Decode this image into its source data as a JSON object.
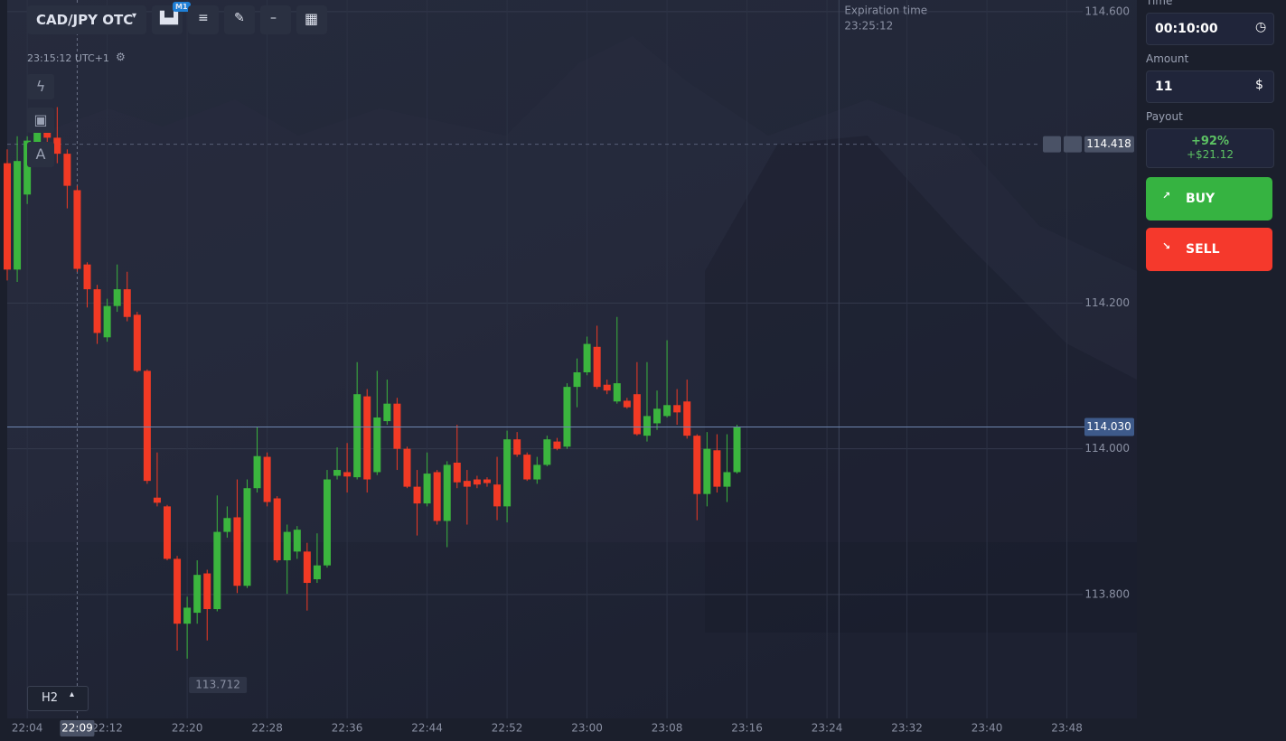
{
  "toolbar": {
    "asset": "CAD/JPY OTC",
    "timeframe_badge": "M1",
    "clock": "23:15:12 UTC+1",
    "chart_period": "H2"
  },
  "chart_data": {
    "type": "candlestick",
    "x": [
      "22:02",
      "22:03",
      "22:04",
      "22:05",
      "22:06",
      "22:07",
      "22:08",
      "22:09",
      "22:10",
      "22:11",
      "22:12",
      "22:13",
      "22:14",
      "22:15",
      "22:16",
      "22:17",
      "22:18",
      "22:19",
      "22:20",
      "22:21",
      "22:22",
      "22:23",
      "22:24",
      "22:25",
      "22:26",
      "22:27",
      "22:28",
      "22:29",
      "22:30",
      "22:31",
      "22:32",
      "22:33",
      "22:34",
      "22:35",
      "22:36",
      "22:37",
      "22:38",
      "22:39",
      "22:40",
      "22:41",
      "22:42",
      "22:43",
      "22:44",
      "22:45",
      "22:46",
      "22:47",
      "22:48",
      "22:49",
      "22:50",
      "22:51",
      "22:52",
      "22:53",
      "22:54",
      "22:55",
      "22:56",
      "22:57",
      "22:58",
      "22:59",
      "23:00",
      "23:01",
      "23:02",
      "23:03",
      "23:04",
      "23:05",
      "23:06",
      "23:07",
      "23:08",
      "23:09",
      "23:10",
      "23:11",
      "23:12",
      "23:13",
      "23:14",
      "23:15"
    ],
    "open": [
      114.392,
      114.246,
      114.349,
      114.417,
      114.436,
      114.427,
      114.405,
      114.355,
      114.253,
      114.219,
      114.153,
      114.196,
      114.219,
      114.184,
      114.107,
      113.933,
      113.921,
      113.849,
      113.76,
      113.775,
      113.829,
      113.78,
      113.886,
      113.906,
      113.812,
      113.946,
      113.989,
      113.932,
      113.847,
      113.859,
      113.859,
      113.821,
      113.84,
      113.963,
      113.968,
      113.961,
      114.072,
      113.968,
      114.038,
      114.062,
      114.0,
      113.948,
      113.925,
      113.968,
      113.901,
      113.981,
      113.956,
      113.958,
      113.958,
      113.951,
      113.921,
      114.013,
      113.992,
      113.958,
      113.978,
      114.01,
      114.003,
      114.085,
      114.105,
      114.14,
      114.088,
      114.065,
      114.066,
      114.075,
      114.018,
      114.035,
      114.045,
      114.06,
      114.065,
      114.018,
      113.938,
      113.998,
      113.948,
      113.968
    ],
    "high": [
      114.411,
      114.429,
      114.429,
      114.467,
      114.44,
      114.469,
      114.411,
      114.361,
      114.256,
      114.225,
      114.206,
      114.253,
      114.243,
      114.188,
      114.109,
      113.995,
      113.923,
      113.853,
      113.797,
      113.847,
      113.834,
      113.936,
      113.921,
      113.958,
      113.958,
      114.03,
      113.995,
      113.935,
      113.896,
      113.894,
      113.871,
      113.884,
      113.971,
      114.002,
      114.008,
      114.119,
      114.082,
      114.107,
      114.095,
      114.07,
      114.003,
      113.971,
      113.995,
      113.971,
      113.983,
      114.033,
      113.971,
      113.963,
      113.961,
      113.989,
      114.025,
      114.023,
      113.995,
      113.989,
      114.018,
      114.015,
      114.09,
      114.124,
      114.154,
      114.169,
      114.095,
      114.181,
      114.07,
      114.119,
      114.119,
      114.08,
      114.149,
      114.082,
      114.095,
      114.02,
      114.023,
      114.02,
      114.02,
      114.033
    ],
    "low": [
      114.231,
      114.229,
      114.336,
      114.398,
      114.42,
      114.392,
      114.33,
      114.243,
      114.194,
      114.144,
      114.147,
      114.188,
      114.175,
      114.105,
      113.952,
      113.921,
      113.847,
      113.723,
      113.712,
      113.76,
      113.737,
      113.777,
      113.878,
      113.802,
      113.809,
      113.94,
      113.921,
      113.844,
      113.801,
      113.849,
      113.778,
      113.816,
      113.837,
      113.958,
      113.94,
      113.958,
      113.94,
      113.964,
      114.033,
      113.971,
      113.946,
      113.881,
      113.921,
      113.896,
      113.865,
      113.946,
      113.896,
      113.946,
      113.948,
      113.902,
      113.899,
      113.989,
      113.956,
      113.952,
      113.976,
      113.998,
      114.0,
      114.057,
      114.101,
      114.082,
      114.075,
      114.062,
      114.055,
      114.018,
      114.01,
      114.026,
      114.043,
      114.033,
      114.014,
      113.902,
      113.921,
      113.94,
      113.927,
      113.966
    ],
    "close": [
      114.246,
      114.395,
      114.423,
      114.436,
      114.427,
      114.405,
      114.361,
      114.247,
      114.219,
      114.159,
      114.196,
      114.219,
      114.181,
      114.107,
      113.956,
      113.926,
      113.849,
      113.76,
      113.782,
      113.827,
      113.78,
      113.886,
      113.905,
      113.812,
      113.946,
      113.99,
      113.927,
      113.847,
      113.886,
      113.889,
      113.816,
      113.84,
      113.958,
      113.971,
      113.962,
      114.075,
      113.958,
      114.043,
      114.062,
      114.0,
      113.948,
      113.925,
      113.966,
      113.901,
      113.978,
      113.954,
      113.948,
      113.951,
      113.953,
      113.921,
      114.013,
      113.992,
      113.958,
      113.978,
      114.013,
      114.0,
      114.085,
      114.105,
      114.144,
      114.085,
      114.08,
      114.09,
      114.057,
      114.02,
      114.045,
      114.055,
      114.06,
      114.05,
      114.018,
      113.938,
      114.0,
      113.948,
      113.968,
      114.03
    ],
    "up_color": "#3bb53e",
    "down_color": "#f23a24",
    "xlim": [
      "22:02",
      "23:55"
    ],
    "xticks": [
      "22:04",
      "22:12",
      "22:20",
      "22:28",
      "22:36",
      "22:44",
      "22:52",
      "23:00",
      "23:08",
      "23:16",
      "23:24",
      "23:32",
      "23:40",
      "23:48"
    ],
    "ylim": [
      113.63,
      114.616
    ],
    "yticks": [
      {
        "value": 113.8,
        "label": "113.800"
      },
      {
        "value": 114.0,
        "label": "114.000"
      },
      {
        "value": 114.2,
        "label": "114.200"
      },
      {
        "value": 114.6,
        "label": "114.600"
      }
    ],
    "grid": true,
    "current_price": {
      "value": 114.03,
      "label": "114.030"
    },
    "alert_price": 114.418,
    "low_marker": 113.712,
    "crosshair_time": "22:09",
    "expiration": {
      "label": "Expiration time",
      "time": "23:25:12"
    }
  },
  "trade_panel": {
    "time_label": "Time",
    "time_value": "00:10:00",
    "amount_label": "Amount",
    "amount_value": "11",
    "payout_label": "Payout",
    "payout_percent": "+92%",
    "payout_amount": "+$21.12",
    "buy": "BUY",
    "sell": "SELL"
  }
}
